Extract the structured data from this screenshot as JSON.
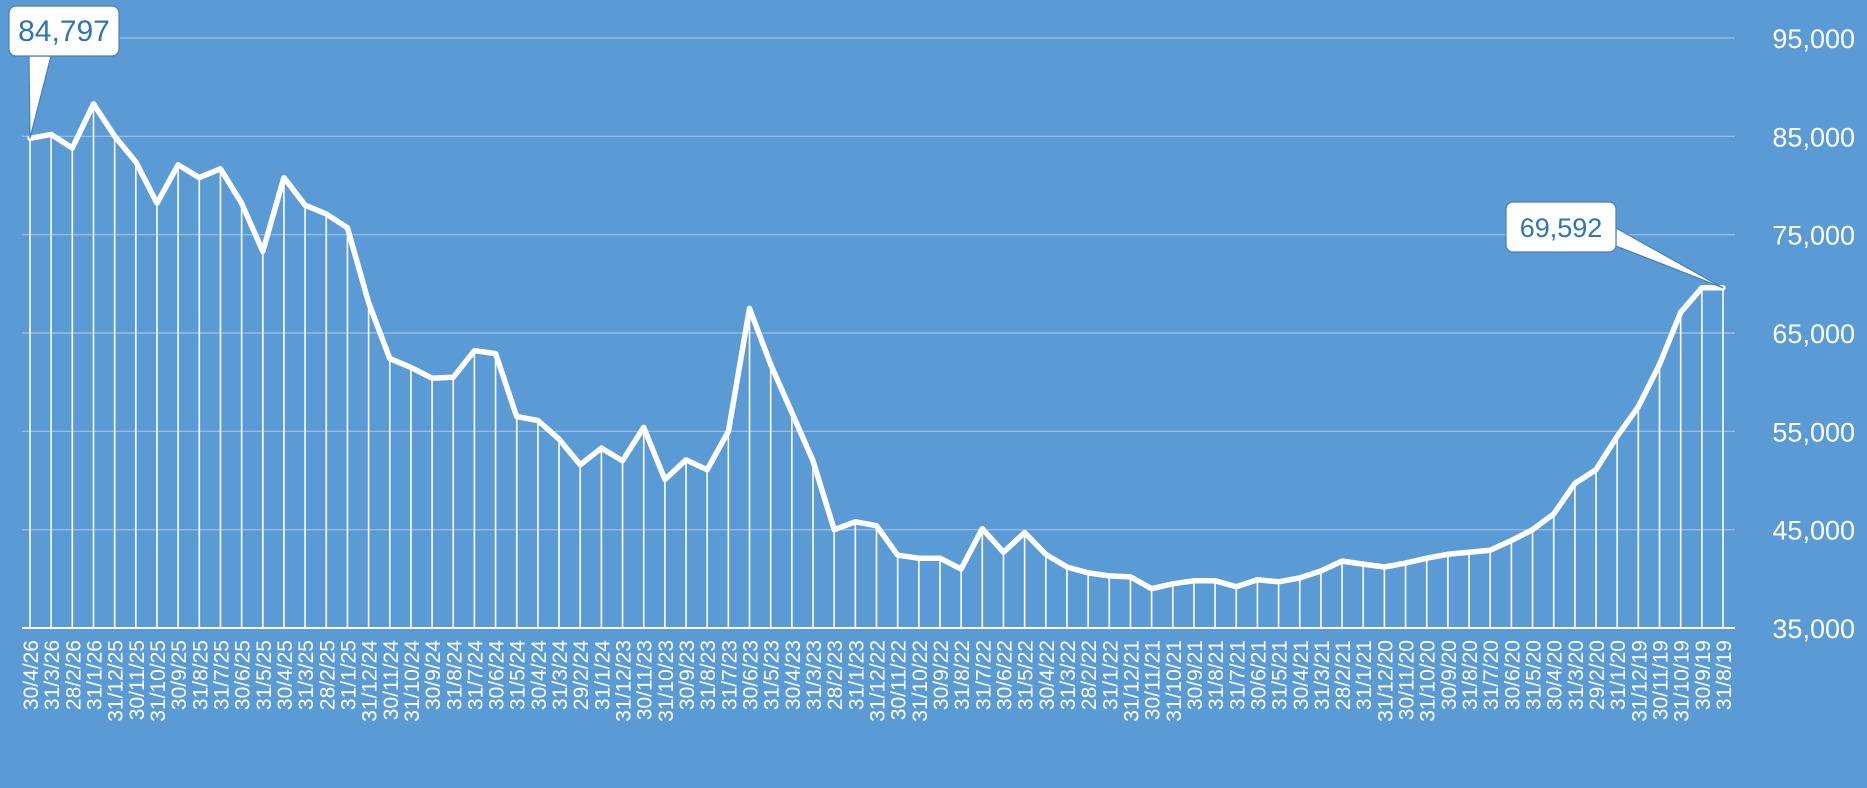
{
  "colors": {
    "background": "#5b9bd5",
    "line": "#ffffff",
    "gridline": "#9dc3e6",
    "callout_text": "#2e75b6"
  },
  "chart_data": {
    "type": "line",
    "title": "",
    "xlabel": "",
    "ylabel": "",
    "ylim": [
      35000,
      95000
    ],
    "yticks": [
      "35,000",
      "45,000",
      "55,000",
      "65,000",
      "75,000",
      "85,000",
      "95,000"
    ],
    "grid": true,
    "drop_lines": true,
    "y_axis_side": "right",
    "annotations": [
      {
        "text": "84,797",
        "point_index": 0
      },
      {
        "text": "69,592",
        "point_index": 80
      }
    ],
    "x": [
      "30/4/26",
      "31/3/26",
      "28/2/26",
      "31/1/26",
      "31/12/25",
      "30/11/25",
      "31/10/25",
      "30/9/25",
      "31/8/25",
      "31/7/25",
      "30/6/25",
      "31/5/25",
      "30/4/25",
      "31/3/25",
      "28/2/25",
      "31/1/25",
      "31/12/24",
      "30/11/24",
      "31/10/24",
      "30/9/24",
      "31/8/24",
      "31/7/24",
      "30/6/24",
      "31/5/24",
      "30/4/24",
      "31/3/24",
      "29/2/24",
      "31/1/24",
      "31/12/23",
      "30/11/23",
      "31/10/23",
      "30/9/23",
      "31/8/23",
      "31/7/23",
      "30/6/23",
      "31/5/23",
      "30/4/23",
      "31/3/23",
      "28/2/23",
      "31/1/23",
      "31/12/22",
      "30/11/22",
      "31/10/22",
      "30/9/22",
      "31/8/22",
      "31/7/22",
      "30/6/22",
      "31/5/22",
      "30/4/22",
      "31/3/22",
      "28/2/22",
      "31/1/22",
      "31/12/21",
      "30/11/21",
      "31/10/21",
      "30/9/21",
      "31/8/21",
      "31/7/21",
      "30/6/21",
      "31/5/21",
      "30/4/21",
      "31/3/21",
      "28/2/21",
      "31/1/21",
      "31/12/20",
      "30/11/20",
      "31/10/20",
      "30/9/20",
      "31/8/20",
      "31/7/20",
      "30/6/20",
      "31/5/20",
      "30/4/20",
      "31/3/20",
      "29/2/20",
      "31/1/20",
      "31/12/19",
      "30/11/19",
      "31/10/19",
      "30/9/19",
      "31/8/19"
    ],
    "series": [
      {
        "values": [
          84797,
          85200,
          83800,
          88300,
          85000,
          82400,
          78200,
          82100,
          80800,
          81700,
          78200,
          73300,
          80800,
          78000,
          77100,
          75700,
          68100,
          62400,
          61500,
          60400,
          60500,
          63200,
          62900,
          56500,
          56100,
          54200,
          51600,
          53300,
          52000,
          55400,
          50100,
          52100,
          51100,
          55000,
          67500,
          61800,
          56900,
          52000,
          45000,
          45800,
          45400,
          42400,
          42100,
          42100,
          41000,
          45100,
          42700,
          44700,
          42500,
          41200,
          40600,
          40300,
          40200,
          39000,
          39500,
          39800,
          39800,
          39200,
          39900,
          39700,
          40100,
          40800,
          41800,
          41500,
          41200,
          41600,
          42100,
          42500,
          42700,
          42900,
          43900,
          45000,
          46600,
          49700,
          51100,
          54500,
          57500,
          61800,
          67100,
          69592,
          69592
        ]
      }
    ]
  }
}
